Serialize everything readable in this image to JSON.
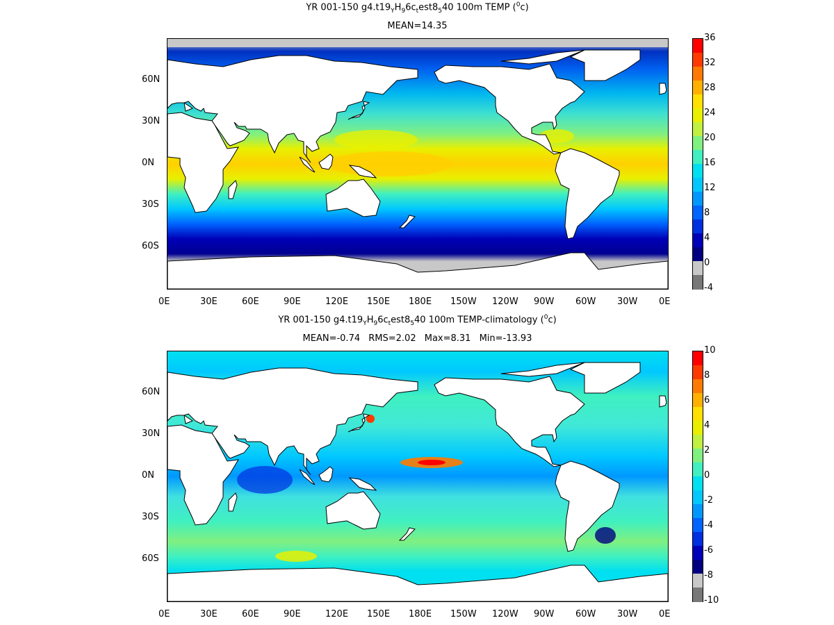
{
  "panels": [
    {
      "title_main": "YR 001-150 g4.t19",
      "title_parts": [
        "YR 001-150 g4.t19",
        "Y",
        "H",
        "9",
        "6c",
        "t",
        "est8",
        "5",
        "40 100m TEMP (",
        "0",
        "c)"
      ],
      "stats": [
        "MEAN=14.35"
      ],
      "colorbar": {
        "labels": [
          "36",
          "32",
          "28",
          "24",
          "20",
          "16",
          "12",
          "8",
          "4",
          "0",
          "-4"
        ],
        "colors": [
          "#ff0000",
          "#ff3a00",
          "#ff7a00",
          "#ffb000",
          "#ffe000",
          "#e8f000",
          "#c0f040",
          "#80f080",
          "#40f0c0",
          "#00e0f0",
          "#00c8ff",
          "#0098ff",
          "#0064ff",
          "#0030e0",
          "#0000b8",
          "#000080",
          "#c8c8c8",
          "#787878"
        ]
      },
      "chart_data": {
        "type": "heatmap",
        "title": "YR 001-150 g4.t19YH96ctest8540 100m TEMP (0c)",
        "subtitle": "MEAN=14.35",
        "x_ticks": [
          "0E",
          "30E",
          "60E",
          "90E",
          "120E",
          "150E",
          "180E",
          "150W",
          "120W",
          "90W",
          "60W",
          "30W",
          "0E"
        ],
        "y_ticks": [
          "60N",
          "30N",
          "0N",
          "30S",
          "60S"
        ],
        "color_range": [
          -4,
          36
        ],
        "mean": 14.35
      }
    },
    {
      "title_parts": [
        "YR 001-150 g4.t19",
        "Y",
        "H",
        "9",
        "6c",
        "t",
        "est8",
        "5",
        "40 100m TEMP-climatology (",
        "0",
        "c)"
      ],
      "stats": [
        "MEAN=-0.74",
        "RMS=2.02",
        "Max=8.31",
        "Min=-13.93"
      ],
      "colorbar": {
        "labels": [
          "10",
          "8",
          "6",
          "4",
          "2",
          "0",
          "-2",
          "-4",
          "-6",
          "-8",
          "-10"
        ],
        "colors": [
          "#ff0000",
          "#ff3a00",
          "#ff7a00",
          "#ffb000",
          "#ffe000",
          "#e8f000",
          "#c0f040",
          "#80f080",
          "#40f0c0",
          "#00e0f0",
          "#00c8ff",
          "#0098ff",
          "#0064ff",
          "#0030e0",
          "#0000b8",
          "#000080",
          "#c8c8c8",
          "#787878"
        ]
      },
      "chart_data": {
        "type": "heatmap",
        "title": "YR 001-150 g4.t19YH96ctest8540 100m TEMP-climatology (0c)",
        "subtitle": "MEAN=-0.74 RMS=2.02 Max=8.31 Min=-13.93",
        "x_ticks": [
          "0E",
          "30E",
          "60E",
          "90E",
          "120E",
          "150E",
          "180E",
          "150W",
          "120W",
          "90W",
          "60W",
          "30W",
          "0E"
        ],
        "y_ticks": [
          "60N",
          "30N",
          "0N",
          "30S",
          "60S"
        ],
        "color_range": [
          -10,
          10
        ],
        "mean": -0.74,
        "rms": 2.02,
        "max": 8.31,
        "min": -13.93
      }
    }
  ]
}
